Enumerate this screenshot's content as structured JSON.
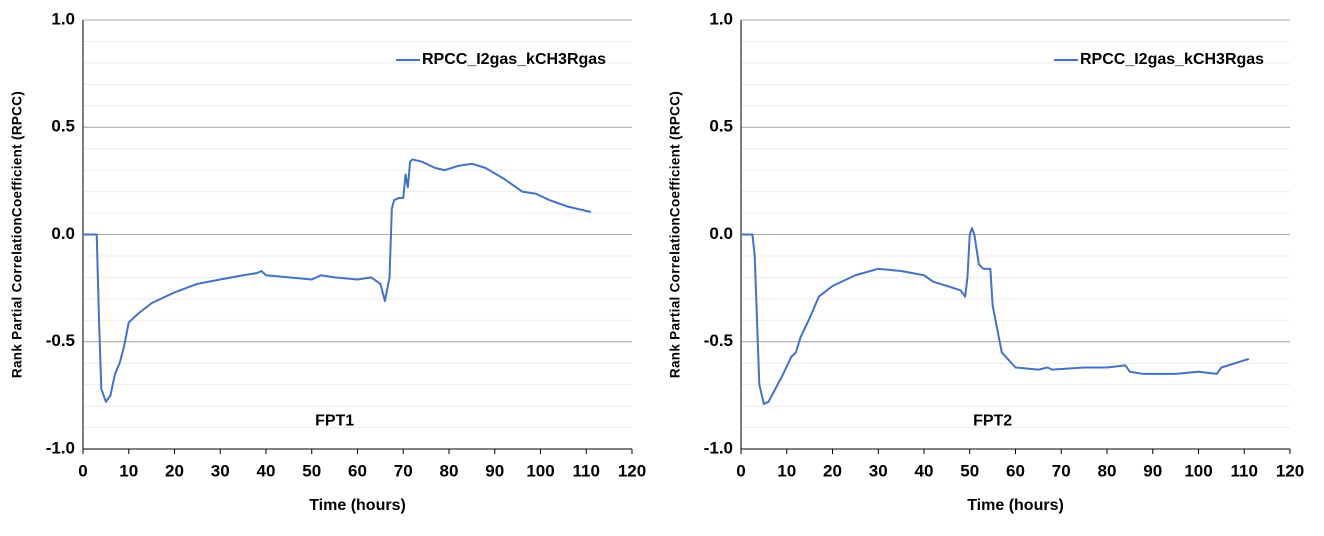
{
  "chart_data": [
    {
      "type": "line",
      "title": null,
      "annotation": "FPT1",
      "x_label": "Time (hours)",
      "y_label": "Rank Partial CorrelationCoefficient (RPCC)",
      "xlim": [
        0,
        120
      ],
      "xticks": [
        0,
        10,
        20,
        30,
        40,
        50,
        60,
        70,
        80,
        90,
        100,
        110,
        120
      ],
      "ylim": [
        -1,
        1
      ],
      "yticks": [
        {
          "value": -1,
          "label": "-1.0"
        },
        {
          "value": -0.5,
          "label": "-0.5"
        },
        {
          "value": 0,
          "label": "0.0"
        },
        {
          "value": 0.5,
          "label": "0.5"
        },
        {
          "value": 1,
          "label": "1.0"
        }
      ],
      "grid": true,
      "legend": "upper right",
      "series": [
        {
          "name": "RPCC_I2gas_kCH3Rgas",
          "color": "#4472c4",
          "x": [
            0,
            3,
            3.5,
            4,
            5,
            6,
            7,
            8,
            9,
            10,
            12,
            15,
            20,
            25,
            30,
            35,
            38,
            39,
            40,
            45,
            50,
            52,
            55,
            60,
            63,
            65,
            66,
            67,
            67.5,
            68,
            69,
            70,
            70.5,
            71,
            71.5,
            72,
            74,
            77,
            79,
            82,
            85,
            88,
            92,
            96,
            99,
            102,
            106,
            111
          ],
          "values": [
            0,
            0,
            -0.4,
            -0.72,
            -0.78,
            -0.75,
            -0.65,
            -0.6,
            -0.52,
            -0.41,
            -0.37,
            -0.32,
            -0.27,
            -0.23,
            -0.21,
            -0.19,
            -0.18,
            -0.17,
            -0.19,
            -0.2,
            -0.21,
            -0.19,
            -0.2,
            -0.21,
            -0.2,
            -0.23,
            -0.31,
            -0.2,
            0.12,
            0.16,
            0.17,
            0.17,
            0.28,
            0.22,
            0.34,
            0.35,
            0.34,
            0.31,
            0.3,
            0.32,
            0.33,
            0.31,
            0.26,
            0.2,
            0.19,
            0.16,
            0.13,
            0.105
          ]
        }
      ]
    },
    {
      "type": "line",
      "title": null,
      "annotation": "FPT2",
      "x_label": "Time (hours)",
      "y_label": "Rank Partial CorrelationCoefficient (RPCC)",
      "xlim": [
        0,
        120
      ],
      "xticks": [
        0,
        10,
        20,
        30,
        40,
        50,
        60,
        70,
        80,
        90,
        100,
        110,
        120
      ],
      "ylim": [
        -1,
        1
      ],
      "yticks": [
        {
          "value": -1,
          "label": "-1.0"
        },
        {
          "value": -0.5,
          "label": "-0.5"
        },
        {
          "value": 0,
          "label": "0.0"
        },
        {
          "value": 0.5,
          "label": "0.5"
        },
        {
          "value": 1,
          "label": "1.0"
        }
      ],
      "grid": true,
      "legend": "upper right",
      "series": [
        {
          "name": "RPCC_I2gas_kCH3Rgas",
          "color": "#4472c4",
          "x": [
            0,
            2.5,
            3,
            4,
            5,
            6,
            7,
            9,
            11,
            12,
            13,
            15,
            17,
            20,
            25,
            30,
            35,
            40,
            42,
            45,
            48,
            49,
            49.5,
            50,
            50.5,
            51,
            52,
            53,
            54.5,
            55,
            57,
            60,
            65,
            67,
            68,
            75,
            80,
            84,
            85,
            88,
            95,
            100,
            104,
            105,
            108,
            111
          ],
          "values": [
            0,
            0,
            -0.1,
            -0.7,
            -0.79,
            -0.78,
            -0.74,
            -0.66,
            -0.57,
            -0.55,
            -0.48,
            -0.39,
            -0.29,
            -0.24,
            -0.19,
            -0.16,
            -0.17,
            -0.19,
            -0.22,
            -0.24,
            -0.26,
            -0.29,
            -0.2,
            0,
            0.03,
            0,
            -0.14,
            -0.16,
            -0.16,
            -0.33,
            -0.55,
            -0.62,
            -0.63,
            -0.62,
            -0.63,
            -0.62,
            -0.62,
            -0.61,
            -0.64,
            -0.65,
            -0.65,
            -0.64,
            -0.65,
            -0.62,
            -0.6,
            -0.58
          ]
        }
      ]
    }
  ]
}
